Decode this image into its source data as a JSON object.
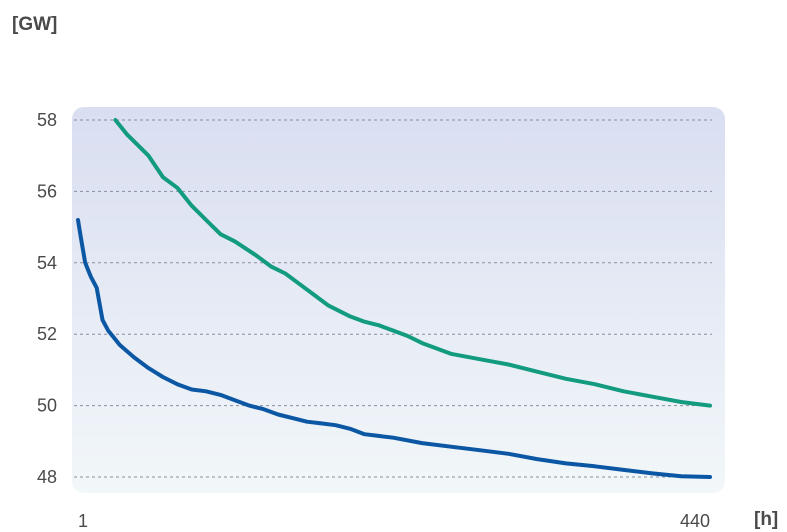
{
  "chart_data": {
    "type": "line",
    "title": "",
    "ylabel": "[GW]",
    "xlabel": "[h]",
    "ylim": [
      48,
      58
    ],
    "xlim": [
      1,
      440
    ],
    "y_ticks": [
      58,
      56,
      54,
      52,
      50,
      48
    ],
    "x_ticks": [
      1,
      440
    ],
    "grid": "horizontal-dashed",
    "colors": {
      "plot_bg_top": "#d9def1",
      "plot_bg_bottom": "#f2f7f9",
      "grid": "#8a8f9a",
      "series_1": "#139b80",
      "series_2": "#0b57a4"
    },
    "series": [
      {
        "color": "#139b80",
        "x": [
          27,
          35,
          50,
          60,
          70,
          80,
          90,
          100,
          110,
          125,
          135,
          145,
          155,
          165,
          175,
          190,
          200,
          210,
          220,
          230,
          240,
          260,
          280,
          300,
          320,
          340,
          360,
          380,
          400,
          420,
          440
        ],
        "y": [
          58.0,
          57.6,
          57.0,
          56.4,
          56.1,
          55.6,
          55.2,
          54.8,
          54.6,
          54.2,
          53.9,
          53.7,
          53.4,
          53.1,
          52.8,
          52.5,
          52.35,
          52.25,
          52.1,
          51.95,
          51.75,
          51.45,
          51.3,
          51.15,
          50.95,
          50.75,
          50.6,
          50.4,
          50.25,
          50.1,
          50.0
        ]
      },
      {
        "color": "#0b57a4",
        "x": [
          1,
          3,
          6,
          10,
          14,
          18,
          22,
          26,
          30,
          40,
          50,
          60,
          70,
          80,
          90,
          100,
          110,
          120,
          130,
          140,
          150,
          160,
          170,
          180,
          190,
          200,
          220,
          240,
          260,
          280,
          300,
          320,
          340,
          360,
          380,
          400,
          420,
          440
        ],
        "y": [
          55.2,
          54.7,
          54.0,
          53.6,
          53.3,
          52.4,
          52.1,
          51.9,
          51.7,
          51.35,
          51.05,
          50.8,
          50.6,
          50.45,
          50.4,
          50.3,
          50.15,
          50.0,
          49.9,
          49.75,
          49.65,
          49.55,
          49.5,
          49.45,
          49.35,
          49.2,
          49.1,
          48.95,
          48.85,
          48.75,
          48.65,
          48.5,
          48.38,
          48.3,
          48.2,
          48.1,
          48.02,
          48.0
        ]
      }
    ]
  }
}
